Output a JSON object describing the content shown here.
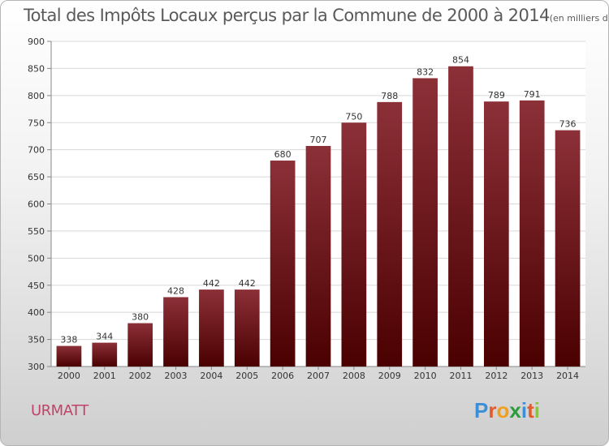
{
  "header": {
    "title": "Total des Impôts Locaux perçus par la Commune de 2000 à 2014",
    "unit": "(en milliers d'€)"
  },
  "footer": {
    "commune": "URMATT",
    "logo_letters": [
      "P",
      "r",
      "o",
      "x",
      "i",
      "t",
      "i"
    ],
    "logo_colors": [
      "#3a8fd6",
      "#e05a2a",
      "#f0a020",
      "#2a9d3a",
      "#3a8fd6",
      "#e05a2a",
      "#8bc34a"
    ]
  },
  "chart_data": {
    "type": "bar",
    "categories": [
      "2000",
      "2001",
      "2002",
      "2003",
      "2004",
      "2005",
      "2006",
      "2007",
      "2008",
      "2009",
      "2010",
      "2011",
      "2012",
      "2013",
      "2014"
    ],
    "values": [
      338,
      344,
      380,
      428,
      442,
      442,
      680,
      707,
      750,
      788,
      832,
      854,
      789,
      791,
      736
    ],
    "data_labels": [
      "338",
      "344",
      "380",
      "428",
      "442",
      "442",
      "680",
      "707",
      "750",
      "788",
      "832",
      "854",
      "789",
      "791",
      "736"
    ],
    "title": "Total des Impôts Locaux perçus par la Commune de 2000 à 2014",
    "ylim": [
      300,
      900
    ],
    "yticks": [
      300,
      350,
      400,
      450,
      500,
      550,
      600,
      650,
      700,
      750,
      800,
      850,
      900
    ],
    "ytick_labels": [
      "300",
      "350",
      "400",
      "450",
      "500",
      "550",
      "600",
      "650",
      "700",
      "750",
      "800",
      "850",
      "900"
    ],
    "grid": true,
    "bar_color": "#7a1420"
  }
}
